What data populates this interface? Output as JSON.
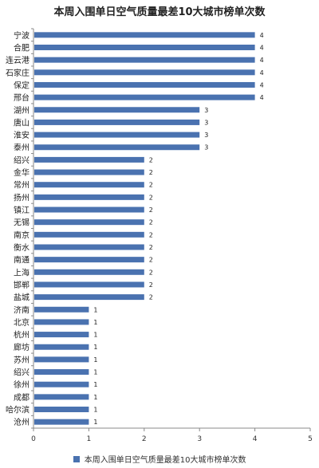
{
  "chart_data": {
    "type": "bar",
    "orientation": "horizontal",
    "title": "本周入围单日空气质量最差10大城市榜单次数",
    "categories": [
      "宁波",
      "合肥",
      "连云港",
      "石家庄",
      "保定",
      "邢台",
      "湖州",
      "唐山",
      "淮安",
      "泰州",
      "绍兴",
      "金华",
      "常州",
      "扬州",
      "镇江",
      "无锡",
      "南京",
      "衡水",
      "南通",
      "上海",
      "邯郸",
      "盐城",
      "济南",
      "北京",
      "杭州",
      "廊坊",
      "苏州",
      "绍兴",
      "徐州",
      "成都",
      "哈尔滨",
      "沧州"
    ],
    "series": [
      {
        "name": "本周入围单日空气质量最差10大城市榜单次数",
        "values": [
          4,
          4,
          4,
          4,
          4,
          4,
          3,
          3,
          3,
          3,
          2,
          2,
          2,
          2,
          2,
          2,
          2,
          2,
          2,
          2,
          2,
          2,
          1,
          1,
          1,
          1,
          1,
          1,
          1,
          1,
          1,
          1
        ],
        "color": "#4a72b0"
      }
    ],
    "xlim": [
      0,
      5
    ],
    "xticks": [
      "0",
      "1",
      "2",
      "3",
      "4",
      "5"
    ],
    "grid": false,
    "legend": "bottom"
  }
}
